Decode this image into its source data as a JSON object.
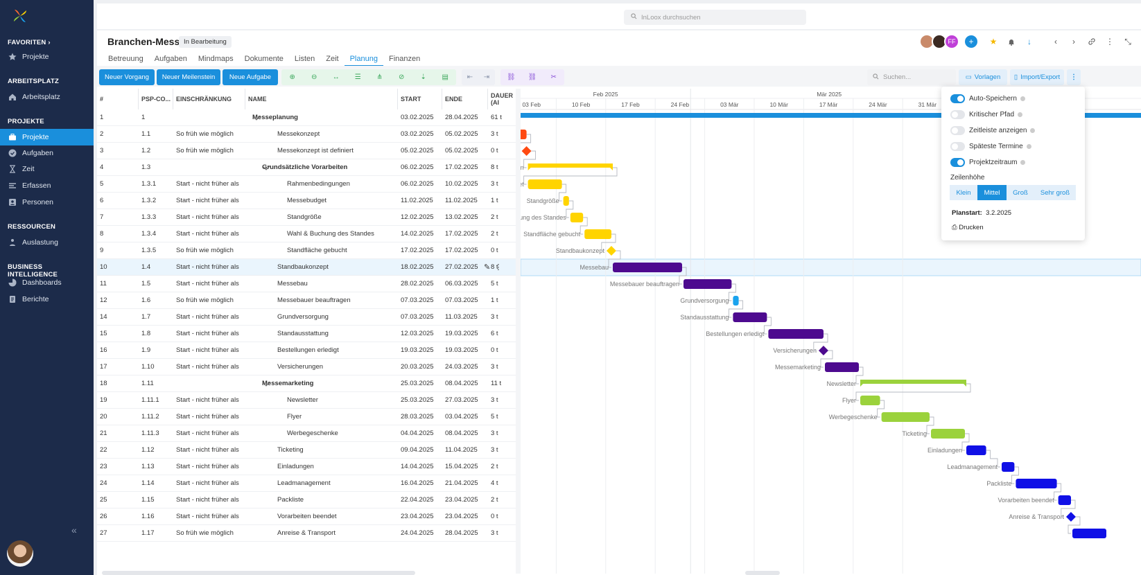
{
  "sidebar": {
    "sections": [
      {
        "title": "FAVORITEN",
        "chevron": "›"
      },
      {
        "title": "ARBEITSPLATZ"
      },
      {
        "title": "PROJEKTE"
      },
      {
        "title": "RESSOURCEN"
      },
      {
        "title": "BUSINESS INTELLIGENCE"
      }
    ],
    "items": {
      "fav_projekte": "Projekte",
      "arbeitsplatz": "Arbeitsplatz",
      "projekte": "Projekte",
      "aufgaben": "Aufgaben",
      "zeit": "Zeit",
      "erfassen": "Erfassen",
      "personen": "Personen",
      "auslastung": "Auslastung",
      "dashboards": "Dashboards",
      "berichte": "Berichte"
    },
    "collapse": "«"
  },
  "topbar": {
    "search_placeholder": "InLoox durchsuchen"
  },
  "project": {
    "title": "Branchen-Messe",
    "status": "In Bearbeitung",
    "tabs": [
      "Betreuung",
      "Aufgaben",
      "Mindmaps",
      "Dokumente",
      "Listen",
      "Zeit",
      "Planung",
      "Finanzen"
    ],
    "active_tab": "Planung",
    "avatar_initials": "FF"
  },
  "toolbar": {
    "new_process": "Neuer Vorgang",
    "new_milestone": "Neuer Meilenstein",
    "new_task": "Neue Aufgabe",
    "search_placeholder": "Suchen...",
    "templates": "Vorlagen",
    "import_export": "Import/Export"
  },
  "grid": {
    "headers": [
      "#",
      "PSP-CO...",
      "EINSCHRÄNKUNG",
      "NAME",
      "START",
      "ENDE",
      "DAUER (AI"
    ],
    "rows": [
      {
        "no": "1",
        "psp": "1",
        "constraint": "",
        "name": "Messeplanung",
        "start": "03.02.2025",
        "end": "28.04.2025",
        "dur": "61 t",
        "level": 0,
        "summary": true
      },
      {
        "no": "2",
        "psp": "1.1",
        "constraint": "So früh wie möglich",
        "name": "Messekonzept",
        "start": "03.02.2025",
        "end": "05.02.2025",
        "dur": "3 t",
        "level": 1
      },
      {
        "no": "3",
        "psp": "1.2",
        "constraint": "So früh wie möglich",
        "name": "Messekonzept ist definiert",
        "start": "05.02.2025",
        "end": "05.02.2025",
        "dur": "0 t",
        "level": 1
      },
      {
        "no": "4",
        "psp": "1.3",
        "constraint": "",
        "name": "Grundsätzliche Vorarbeiten",
        "start": "06.02.2025",
        "end": "17.02.2025",
        "dur": "8 t",
        "level": 1,
        "summary": true
      },
      {
        "no": "5",
        "psp": "1.3.1",
        "constraint": "Start - nicht früher als",
        "name": "Rahmenbedingungen",
        "start": "06.02.2025",
        "end": "10.02.2025",
        "dur": "3 t",
        "level": 2
      },
      {
        "no": "6",
        "psp": "1.3.2",
        "constraint": "Start - nicht früher als",
        "name": "Messebudget",
        "start": "11.02.2025",
        "end": "11.02.2025",
        "dur": "1 t",
        "level": 2
      },
      {
        "no": "7",
        "psp": "1.3.3",
        "constraint": "Start - nicht früher als",
        "name": "Standgröße",
        "start": "12.02.2025",
        "end": "13.02.2025",
        "dur": "2 t",
        "level": 2
      },
      {
        "no": "8",
        "psp": "1.3.4",
        "constraint": "Start - nicht früher als",
        "name": "Wahl & Buchung des Standes",
        "start": "14.02.2025",
        "end": "17.02.2025",
        "dur": "2 t",
        "level": 2
      },
      {
        "no": "9",
        "psp": "1.3.5",
        "constraint": "So früh wie möglich",
        "name": "Standfläche gebucht",
        "start": "17.02.2025",
        "end": "17.02.2025",
        "dur": "0 t",
        "level": 2
      },
      {
        "no": "10",
        "psp": "1.4",
        "constraint": "Start - nicht früher als",
        "name": "Standbaukonzept",
        "start": "18.02.2025",
        "end": "27.02.2025",
        "dur": "8 t",
        "level": 1,
        "selected": true
      },
      {
        "no": "11",
        "psp": "1.5",
        "constraint": "Start - nicht früher als",
        "name": "Messebau",
        "start": "28.02.2025",
        "end": "06.03.2025",
        "dur": "5 t",
        "level": 1
      },
      {
        "no": "12",
        "psp": "1.6",
        "constraint": "So früh wie möglich",
        "name": "Messebauer beauftragen",
        "start": "07.03.2025",
        "end": "07.03.2025",
        "dur": "1 t",
        "level": 1
      },
      {
        "no": "14",
        "psp": "1.7",
        "constraint": "Start - nicht früher als",
        "name": "Grundversorgung",
        "start": "07.03.2025",
        "end": "11.03.2025",
        "dur": "3 t",
        "level": 1
      },
      {
        "no": "15",
        "psp": "1.8",
        "constraint": "Start - nicht früher als",
        "name": "Standausstattung",
        "start": "12.03.2025",
        "end": "19.03.2025",
        "dur": "6 t",
        "level": 1
      },
      {
        "no": "16",
        "psp": "1.9",
        "constraint": "Start - nicht früher als",
        "name": "Bestellungen erledigt",
        "start": "19.03.2025",
        "end": "19.03.2025",
        "dur": "0 t",
        "level": 1
      },
      {
        "no": "17",
        "psp": "1.10",
        "constraint": "Start - nicht früher als",
        "name": "Versicherungen",
        "start": "20.03.2025",
        "end": "24.03.2025",
        "dur": "3 t",
        "level": 1
      },
      {
        "no": "18",
        "psp": "1.11",
        "constraint": "",
        "name": "Messemarketing",
        "start": "25.03.2025",
        "end": "08.04.2025",
        "dur": "11 t",
        "level": 1,
        "summary": true
      },
      {
        "no": "19",
        "psp": "1.11.1",
        "constraint": "Start - nicht früher als",
        "name": "Newsletter",
        "start": "25.03.2025",
        "end": "27.03.2025",
        "dur": "3 t",
        "level": 2
      },
      {
        "no": "20",
        "psp": "1.11.2",
        "constraint": "Start - nicht früher als",
        "name": "Flyer",
        "start": "28.03.2025",
        "end": "03.04.2025",
        "dur": "5 t",
        "level": 2
      },
      {
        "no": "21",
        "psp": "1.11.3",
        "constraint": "Start - nicht früher als",
        "name": "Werbegeschenke",
        "start": "04.04.2025",
        "end": "08.04.2025",
        "dur": "3 t",
        "level": 2
      },
      {
        "no": "22",
        "psp": "1.12",
        "constraint": "Start - nicht früher als",
        "name": "Ticketing",
        "start": "09.04.2025",
        "end": "11.04.2025",
        "dur": "3 t",
        "level": 1
      },
      {
        "no": "23",
        "psp": "1.13",
        "constraint": "Start - nicht früher als",
        "name": "Einladungen",
        "start": "14.04.2025",
        "end": "15.04.2025",
        "dur": "2 t",
        "level": 1
      },
      {
        "no": "24",
        "psp": "1.14",
        "constraint": "Start - nicht früher als",
        "name": "Leadmanagement",
        "start": "16.04.2025",
        "end": "21.04.2025",
        "dur": "4 t",
        "level": 1
      },
      {
        "no": "25",
        "psp": "1.15",
        "constraint": "Start - nicht früher als",
        "name": "Packliste",
        "start": "22.04.2025",
        "end": "23.04.2025",
        "dur": "2 t",
        "level": 1
      },
      {
        "no": "26",
        "psp": "1.16",
        "constraint": "Start - nicht früher als",
        "name": "Vorarbeiten beendet",
        "start": "23.04.2025",
        "end": "23.04.2025",
        "dur": "0 t",
        "level": 1
      },
      {
        "no": "27",
        "psp": "1.17",
        "constraint": "So früh wie möglich",
        "name": "Anreise & Transport",
        "start": "24.04.2025",
        "end": "28.04.2025",
        "dur": "3 t",
        "level": 1
      }
    ]
  },
  "gantt": {
    "months": [
      "Feb 2025",
      "Mär 2025"
    ],
    "weeks": [
      "03 Feb",
      "10 Feb",
      "17 Feb",
      "24 Feb",
      "03 Mär",
      "10 Mär",
      "17 Mär",
      "24 Mär",
      "31 Mär"
    ],
    "labels": [
      "iten",
      "gen",
      "Messebudget",
      "Standgröße",
      "l & Buchung des Standes",
      "Standfläche gebucht",
      "Standbaukonzept",
      "Messebau",
      "Messebauer beauftragen",
      "Grundversorgung",
      "Standausstattung",
      "Bestellungen erledigt",
      "Versicherungen",
      "Messemarketing",
      "Newsletter",
      "Flyer",
      "Werbegeschenke",
      "Ticketing",
      "Einladungen",
      "Leadmanagement",
      "Packliste",
      "Vorarbeiten beendet",
      "Anreise & Transport"
    ],
    "colors": {
      "project": "#1a8fdc",
      "orange": "#ff4a12",
      "yellow": "#ffd400",
      "purple": "#4d0a8f",
      "green": "#9bd23c",
      "blue": "#1010e6",
      "lightblue": "#1aa3ee"
    }
  },
  "settings_menu": {
    "toggles": [
      {
        "label": "Auto-Speichern",
        "on": true
      },
      {
        "label": "Kritischer Pfad",
        "on": false
      },
      {
        "label": "Zeitleiste anzeigen",
        "on": false
      },
      {
        "label": "Späteste Termine",
        "on": false
      },
      {
        "label": "Projektzeitraum",
        "on": true
      }
    ],
    "row_height_label": "Zeilenhöhe",
    "row_heights": [
      "Klein",
      "Mittel",
      "Groß",
      "Sehr groß"
    ],
    "row_height_selected": "Mittel",
    "planstart_label": "Planstart:",
    "planstart_value": "3.2.2025",
    "print": "Drucken"
  }
}
